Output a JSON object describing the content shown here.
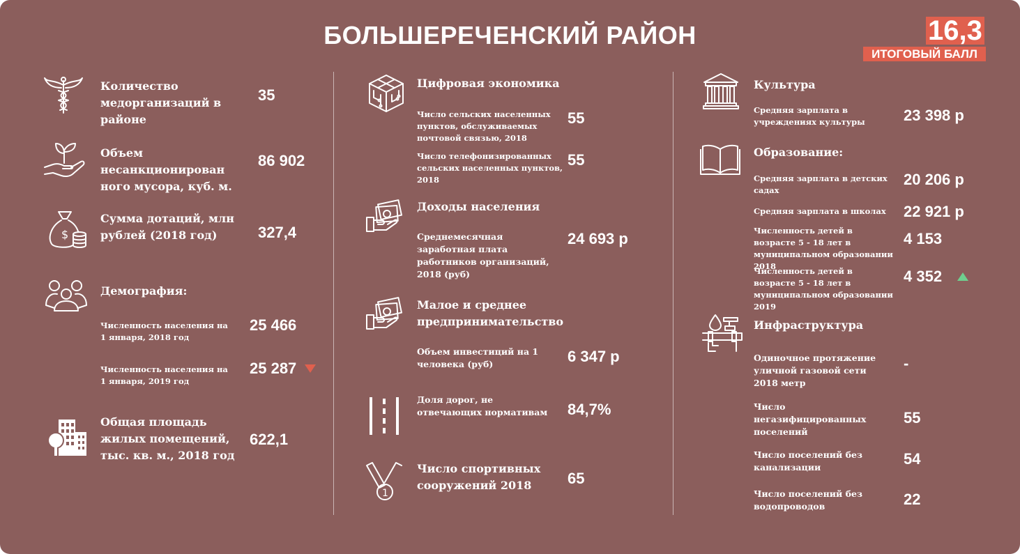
{
  "title": "БОЛЬШЕРЕЧЕНСКИЙ РАЙОН",
  "score": {
    "value": "16,3",
    "label": "ИТОГОВЫЙ БАЛЛ"
  },
  "col1": {
    "med_label": "Количество медорганизаций в районе",
    "med_value": "35",
    "waste_label": "Объем несанкционирован ного мусора, куб. м.",
    "waste_value": "86 902",
    "subsidy_label": "Сумма дотаций, млн рублей (2018 год)",
    "subsidy_value": "327,4",
    "demo_title": "Демография:",
    "pop2018_label": "Численность населения на 1 января, 2018 год",
    "pop2018_value": "25 466",
    "pop2019_label": "Численность населения на 1 января, 2019 год",
    "pop2019_value": "25 287",
    "housing_label": "Общая площадь жилых помещений, тыс. кв. м., 2018 год",
    "housing_value": "622,1"
  },
  "col2": {
    "digital_title": "Цифровая экономика",
    "postal_label": "Число сельских населенных пунктов, обслуживаемых почтовой связью, 2018",
    "postal_value": "55",
    "phone_label": "Число телефонизированных сельских населенных пунктов, 2018",
    "phone_value": "55",
    "income_title": "Доходы населения",
    "salary_label": "Среднемесячная заработная плата работников организаций, 2018 (руб)",
    "salary_value": "24 693 р",
    "sme_title": "Малое и среднее предпринимательство",
    "invest_label": "Объем инвестиций на 1 человека (руб)",
    "invest_value": "6 347 р",
    "roads_label": "Доля дорог, не отвечающих нормативам",
    "roads_value": "84,7%",
    "sport_label": "Число спортивных сооружений 2018",
    "sport_value": "65"
  },
  "col3": {
    "culture_title": "Культура",
    "culture_salary_label": "Средняя зарплата в учреждениях культуры",
    "culture_salary_value": "23 398 р",
    "edu_title": "Образование:",
    "kinder_label": "Средняя зарплата в детских садах",
    "kinder_value": "20 206 р",
    "school_label": "Средняя зарплата в школах",
    "school_value": "22 921 р",
    "kids2018_label": "Численность детей в возрасте 5 - 18 лет в муниципальном образовании 2018",
    "kids2018_value": "4 153",
    "kids2019_label": "Численность детей в возрасте 5 - 18 лет в муниципальном образовании 2019",
    "kids2019_value": "4 352",
    "infra_title": "Инфраструктура",
    "gas_label": "Одиночное протяжение уличной газовой сети 2018 метр",
    "gas_value": "-",
    "nogas_label": "Число негазифицированных поселений",
    "nogas_value": "55",
    "nosewer_label": "Число поселений без канализации",
    "nosewer_value": "54",
    "nowater_label": "Число поселений без водопроводов",
    "nowater_value": "22"
  },
  "icons": [
    "caduceus-icon",
    "sprout-hand-icon",
    "money-bag-icon",
    "people-group-icon",
    "buildings-tree-icon",
    "digital-cube-icon",
    "cash-hand-icon",
    "road-icon",
    "medal-icon",
    "museum-icon",
    "open-book-icon",
    "pipes-icon"
  ],
  "colors": {
    "background": "#8b5e5c",
    "accent": "#e0604e",
    "up": "#6fcf8f",
    "text": "#ffffff"
  }
}
